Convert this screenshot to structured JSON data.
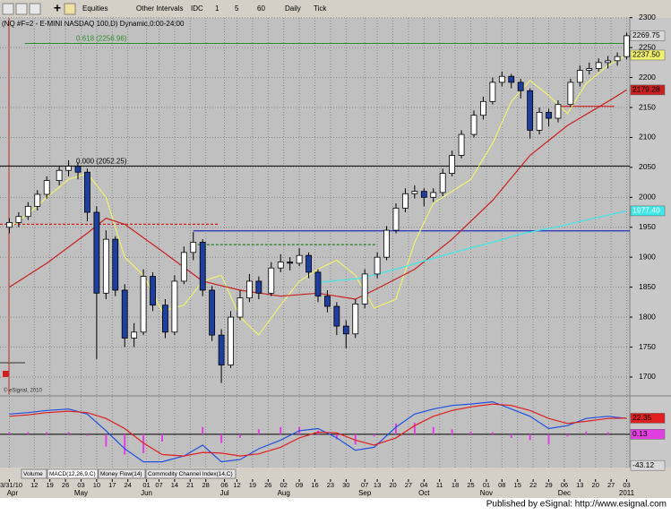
{
  "toolbar": {
    "items": [
      "Equities",
      "Other Intervals",
      "IDC",
      "1",
      "5",
      "60",
      "Daily",
      "Tick"
    ]
  },
  "tabs": [
    "Volume",
    "MACD(12,26,9,C)",
    "Money Flow(14)",
    "Commodity Channel Index(14,C)"
  ],
  "copyright": "© eSignal, 2010",
  "footer": "Published by eSignal: http://www.esignal.com",
  "chart_data": [
    {
      "type": "candlestick",
      "title": "(NQ #F=2 - E-MINI NASDAQ 100,D) Dynamic,0:00-24:00",
      "x": [
        0,
        3,
        6,
        9,
        12,
        16,
        19,
        22,
        25,
        28,
        31,
        34,
        37,
        40,
        43,
        46,
        50,
        53,
        56,
        59,
        62,
        65,
        68,
        71,
        74,
        77,
        80,
        84,
        87,
        90,
        93,
        96,
        99,
        102,
        105,
        108,
        111,
        114,
        118,
        121,
        124,
        127,
        130,
        133,
        136,
        139,
        142,
        145,
        149,
        152,
        155,
        158,
        161,
        164,
        167,
        170,
        173,
        176,
        180,
        183,
        186,
        189,
        192,
        195,
        198
      ],
      "open": [
        1950,
        1958,
        1968,
        1985,
        2005,
        2028,
        2045,
        2052,
        2042,
        1975,
        1840,
        1930,
        1845,
        1765,
        1775,
        1868,
        1820,
        1775,
        1860,
        1908,
        1925,
        1845,
        1770,
        1720,
        1800,
        1832,
        1860,
        1840,
        1882,
        1892,
        1890,
        1903,
        1875,
        1835,
        1818,
        1785,
        1772,
        1822,
        1872,
        1900,
        1945,
        1982,
        2006,
        2010,
        2000,
        2008,
        2040,
        2070,
        2105,
        2137,
        2160,
        2192,
        2202,
        2192,
        2178,
        2112,
        2142,
        2132,
        2155,
        2192,
        2212,
        2215,
        2225,
        2228,
        2235
      ],
      "high": [
        1965,
        1975,
        1992,
        2012,
        2035,
        2052,
        2062,
        2058,
        2048,
        1985,
        1945,
        1935,
        1855,
        1790,
        1880,
        1875,
        1830,
        1870,
        1918,
        1942,
        1930,
        1852,
        1780,
        1810,
        1845,
        1872,
        1868,
        1892,
        1905,
        1900,
        1915,
        1908,
        1880,
        1845,
        1825,
        1795,
        1830,
        1880,
        1908,
        1952,
        1990,
        2015,
        2020,
        2015,
        2015,
        2048,
        2078,
        2112,
        2145,
        2168,
        2200,
        2210,
        2206,
        2198,
        2182,
        2150,
        2148,
        2162,
        2198,
        2220,
        2225,
        2232,
        2236,
        2242,
        2275
      ],
      "low": [
        1940,
        1950,
        1962,
        1978,
        1998,
        2020,
        2035,
        2030,
        1960,
        1730,
        1830,
        1835,
        1750,
        1750,
        1770,
        1810,
        1765,
        1770,
        1855,
        1895,
        1835,
        1760,
        1690,
        1715,
        1795,
        1825,
        1830,
        1835,
        1875,
        1878,
        1885,
        1865,
        1825,
        1808,
        1770,
        1748,
        1765,
        1815,
        1865,
        1895,
        1940,
        1975,
        1998,
        1985,
        1992,
        2002,
        2035,
        2065,
        2100,
        2130,
        2155,
        2185,
        2182,
        2165,
        2098,
        2105,
        2118,
        2125,
        2150,
        2185,
        2205,
        2210,
        2215,
        2220,
        2230
      ],
      "close": [
        1958,
        1968,
        1985,
        2005,
        2028,
        2045,
        2052,
        2042,
        1975,
        1840,
        1930,
        1845,
        1765,
        1775,
        1868,
        1820,
        1775,
        1860,
        1908,
        1925,
        1845,
        1770,
        1720,
        1800,
        1832,
        1860,
        1840,
        1882,
        1892,
        1890,
        1903,
        1875,
        1835,
        1818,
        1785,
        1772,
        1822,
        1872,
        1900,
        1945,
        1982,
        2006,
        2010,
        2000,
        2008,
        2040,
        2070,
        2105,
        2137,
        2160,
        2192,
        2202,
        2192,
        2178,
        2112,
        2142,
        2132,
        2155,
        2192,
        2212,
        2215,
        2225,
        2228,
        2235,
        2269.75
      ],
      "up_color": "#ffffff",
      "down_color": "#1f3f9f",
      "last_price": 2269.75,
      "xlim": [
        -3,
        199
      ],
      "ylim": [
        1670,
        2310
      ],
      "yticks": [
        2300,
        2250,
        2200,
        2150,
        2100,
        2050,
        2000,
        1950,
        1900,
        1850,
        1800,
        1750,
        1700
      ],
      "grid": true,
      "xticks": [
        {
          "value": 0,
          "label": "03/31/10"
        },
        {
          "value": 8,
          "label": "12"
        },
        {
          "value": 13,
          "label": "19"
        },
        {
          "value": 18,
          "label": "26"
        },
        {
          "value": 23,
          "label": "03"
        },
        {
          "value": 28,
          "label": "10"
        },
        {
          "value": 33,
          "label": "17"
        },
        {
          "value": 38,
          "label": "24"
        },
        {
          "value": 44,
          "label": "01"
        },
        {
          "value": 48,
          "label": "07"
        },
        {
          "value": 53,
          "label": "14"
        },
        {
          "value": 58,
          "label": "21"
        },
        {
          "value": 63,
          "label": "28"
        },
        {
          "value": 69,
          "label": "06"
        },
        {
          "value": 73,
          "label": "12"
        },
        {
          "value": 78,
          "label": "19"
        },
        {
          "value": 83,
          "label": "26"
        },
        {
          "value": 88,
          "label": "02"
        },
        {
          "value": 93,
          "label": "09"
        },
        {
          "value": 98,
          "label": "16"
        },
        {
          "value": 103,
          "label": "23"
        },
        {
          "value": 108,
          "label": "30"
        },
        {
          "value": 114,
          "label": "07"
        },
        {
          "value": 118,
          "label": "13"
        },
        {
          "value": 123,
          "label": "20"
        },
        {
          "value": 128,
          "label": "27"
        },
        {
          "value": 133,
          "label": "04"
        },
        {
          "value": 138,
          "label": "11"
        },
        {
          "value": 143,
          "label": "18"
        },
        {
          "value": 148,
          "label": "25"
        },
        {
          "value": 153,
          "label": "01"
        },
        {
          "value": 158,
          "label": "08"
        },
        {
          "value": 163,
          "label": "15"
        },
        {
          "value": 168,
          "label": "22"
        },
        {
          "value": 173,
          "label": "29"
        },
        {
          "value": 178,
          "label": "06"
        },
        {
          "value": 183,
          "label": "13"
        },
        {
          "value": 188,
          "label": "20"
        },
        {
          "value": 193,
          "label": "27"
        },
        {
          "value": 198,
          "label": "03"
        }
      ],
      "month_ticks": [
        {
          "value": 1,
          "label": "Apr"
        },
        {
          "value": 23,
          "label": "May"
        },
        {
          "value": 44,
          "label": "Jun"
        },
        {
          "value": 69,
          "label": "Jul"
        },
        {
          "value": 88,
          "label": "Aug"
        },
        {
          "value": 114,
          "label": "Sep"
        },
        {
          "value": 133,
          "label": "Oct"
        },
        {
          "value": 153,
          "label": "Nov"
        },
        {
          "value": 178,
          "label": "Dec"
        },
        {
          "value": 198,
          "label": "2011"
        }
      ],
      "overlays": [
        {
          "color": "#f0f070",
          "x": [
            0,
            6,
            12,
            19,
            25,
            31,
            37,
            43,
            49,
            56,
            62,
            68,
            74,
            80,
            87,
            93,
            99,
            105,
            111,
            117,
            124,
            130,
            136,
            142,
            148,
            155,
            161,
            167,
            173,
            179,
            185,
            192,
            198
          ],
          "values": [
            1950,
            1972,
            2000,
            2030,
            2040,
            2000,
            1900,
            1870,
            1810,
            1820,
            1860,
            1870,
            1800,
            1770,
            1820,
            1860,
            1880,
            1895,
            1870,
            1815,
            1830,
            1925,
            1990,
            2010,
            2030,
            2090,
            2160,
            2195,
            2170,
            2140,
            2190,
            2220,
            2237.5
          ],
          "last": {
            "value": 2237.5,
            "label": "2237.50"
          }
        },
        {
          "color": "#c82020",
          "x": [
            0,
            12,
            25,
            31,
            37,
            49,
            62,
            74,
            87,
            99,
            105,
            111,
            117,
            130,
            142,
            155,
            167,
            179,
            192,
            198
          ],
          "values": [
            1850,
            1890,
            1940,
            1965,
            1955,
            1910,
            1860,
            1845,
            1835,
            1840,
            1835,
            1830,
            1845,
            1880,
            1930,
            1995,
            2070,
            2120,
            2160,
            2179.28
          ],
          "last": 2179.28
        },
        {
          "color": "#40e8e8",
          "x": [
            99,
            113,
            124,
            134,
            144,
            155,
            165,
            175,
            185,
            198
          ],
          "values": [
            1858,
            1865,
            1880,
            1895,
            1910,
            1925,
            1940,
            1950,
            1962,
            1977.4
          ],
          "last": {
            "value": 1977.4,
            "label": "1977.40"
          }
        }
      ],
      "levels": [
        {
          "value": 2256.96,
          "label": "0.618 (2256.96)",
          "color": "#2e8b2e",
          "x": [
            5,
            199
          ]
        },
        {
          "value": 2052.25,
          "label": "0.000 (2052.25)",
          "color": "#000000",
          "x": [
            -3,
            199
          ]
        }
      ],
      "lines": [
        {
          "value": 1955,
          "x": [
            -3,
            67
          ],
          "color": "#d02020",
          "dash": true
        },
        {
          "value": 1944,
          "x": [
            59,
            199
          ],
          "color": "#2030c0",
          "dash": false
        },
        {
          "value": 1921,
          "x": [
            59,
            118
          ],
          "color": "#208020",
          "dash": true
        },
        {
          "value": 2152,
          "x": [
            175,
            194
          ],
          "color": "#d02020",
          "dash": false
        }
      ]
    },
    {
      "type": "macd",
      "xlim": [
        -3,
        199
      ],
      "ylim": [
        -46,
        52
      ],
      "x": [
        0,
        6,
        12,
        19,
        25,
        31,
        37,
        43,
        49,
        56,
        62,
        68,
        74,
        80,
        87,
        93,
        99,
        105,
        111,
        117,
        124,
        130,
        136,
        142,
        148,
        155,
        161,
        167,
        173,
        179,
        185,
        192,
        198
      ],
      "series": [
        {
          "color": "#2050e0",
          "values": [
            28,
            30,
            33,
            35,
            28,
            5,
            -20,
            -38,
            -38,
            -30,
            -15,
            -38,
            -35,
            -20,
            -8,
            5,
            8,
            -5,
            -22,
            -18,
            10,
            28,
            35,
            40,
            42,
            45,
            35,
            25,
            8,
            12,
            22,
            25,
            22
          ]
        },
        {
          "color": "#e02020",
          "values": [
            25,
            27,
            30,
            32,
            30,
            22,
            8,
            -12,
            -28,
            -30,
            -25,
            -26,
            -30,
            -27,
            -18,
            -5,
            3,
            2,
            -8,
            -15,
            -5,
            12,
            25,
            33,
            38,
            42,
            40,
            33,
            22,
            15,
            18,
            22,
            22.35
          ],
          "last": 22.35
        }
      ],
      "histogram": {
        "color": "#e040e0",
        "values": [
          3,
          3,
          3,
          3,
          -2,
          -17,
          -28,
          -26,
          -10,
          0,
          10,
          -12,
          -5,
          7,
          10,
          10,
          5,
          -7,
          -14,
          -3,
          15,
          16,
          10,
          7,
          4,
          3,
          -5,
          -8,
          -14,
          -3,
          4,
          3,
          0.13
        ],
        "last": 0.13
      },
      "bottom_label": -43.12
    }
  ]
}
